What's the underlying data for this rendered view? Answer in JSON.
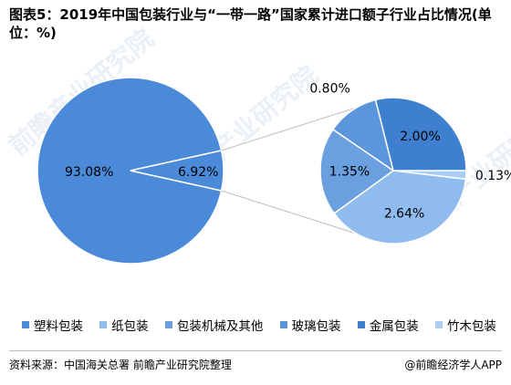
{
  "title": "图表5：2019年中国包装行业与“一带一路”国家累计进口额子行业占比情况(单位：%)",
  "footer": {
    "source": "资料来源：中国海关总署 前瞻产业研究院整理",
    "brand": "@前瞻经济学人APP"
  },
  "watermark": "前瞻产业研究院",
  "chart_data": {
    "type": "pie",
    "subtype": "pie-of-pie",
    "categories": [
      "塑料包装",
      "纸包装",
      "包装机械及其他",
      "玻璃包装",
      "金属包装",
      "竹木包装"
    ],
    "values": [
      93.08,
      2.64,
      1.35,
      0.8,
      2.0,
      0.13
    ],
    "labels": [
      "93.08%",
      "2.64%",
      "1.35%",
      "0.80%",
      "2.00%",
      "0.13%"
    ],
    "secondary_total_label": "6.92%",
    "secondary_categories": [
      "纸包装",
      "包装机械及其他",
      "玻璃包装",
      "金属包装",
      "竹木包装"
    ],
    "colors": [
      "#4a8ad8",
      "#8fbbef",
      "#6a9fe0",
      "#5b95dc",
      "#3f7fcf",
      "#a9cdf3"
    ],
    "legend_position": "bottom"
  }
}
